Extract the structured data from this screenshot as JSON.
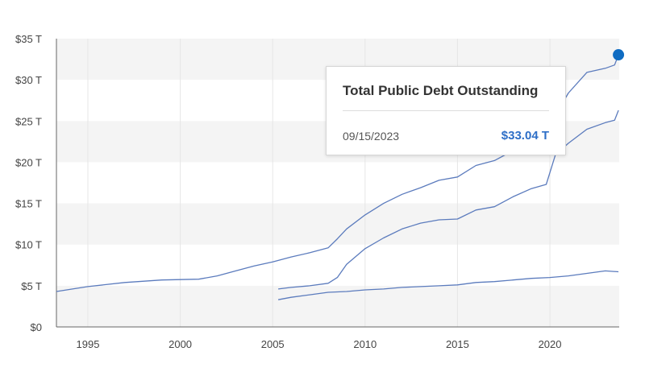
{
  "chart_data": {
    "type": "line",
    "title": "",
    "xlabel": "",
    "ylabel": "",
    "xlim": [
      1993.3,
      2023.75
    ],
    "ylim": [
      0,
      35
    ],
    "x_ticks": [
      "1995",
      "2000",
      "2005",
      "2010",
      "2015",
      "2020"
    ],
    "y_ticks": [
      "$0",
      "$5 T",
      "$10 T",
      "$15 T",
      "$20 T",
      "$25 T",
      "$30 T",
      "$35 T"
    ],
    "grid": "banded horizontal, vertical gridlines",
    "series": [
      {
        "x": [
          1993.3,
          1995,
          1997,
          1999,
          2001,
          2002,
          2003,
          2004,
          2005,
          2006,
          2007,
          2008,
          2008.5,
          2009,
          2010,
          2011,
          2012,
          2013,
          2014,
          2015,
          2016,
          2017,
          2018,
          2019,
          2019.8,
          2020.3,
          2021,
          2022,
          2023,
          2023.5,
          2023.71
        ],
        "values": [
          4.3,
          4.9,
          5.4,
          5.7,
          5.8,
          6.2,
          6.8,
          7.4,
          7.9,
          8.5,
          9.0,
          9.6,
          10.7,
          11.9,
          13.6,
          15.0,
          16.1,
          16.9,
          17.8,
          18.2,
          19.6,
          20.2,
          21.4,
          22.7,
          23.3,
          25.7,
          28.4,
          30.9,
          31.4,
          31.8,
          33.04
        ]
      },
      {
        "x": [
          2005.3,
          2006,
          2007,
          2008,
          2008.5,
          2009,
          2010,
          2011,
          2012,
          2013,
          2014,
          2015,
          2016,
          2017,
          2018,
          2019,
          2019.8,
          2020.3,
          2021,
          2022,
          2023,
          2023.5,
          2023.71
        ],
        "values": [
          4.6,
          4.8,
          5.0,
          5.3,
          6.0,
          7.6,
          9.5,
          10.8,
          11.9,
          12.6,
          13.0,
          13.1,
          14.2,
          14.6,
          15.8,
          16.8,
          17.3,
          20.9,
          22.3,
          24.0,
          24.8,
          25.1,
          26.3
        ]
      },
      {
        "x": [
          2005.3,
          2006,
          2007,
          2008,
          2009,
          2010,
          2011,
          2012,
          2013,
          2014,
          2015,
          2016,
          2017,
          2018,
          2019,
          2020,
          2021,
          2022,
          2023,
          2023.71
        ],
        "values": [
          3.3,
          3.6,
          3.9,
          4.2,
          4.3,
          4.5,
          4.6,
          4.8,
          4.9,
          5.0,
          5.1,
          5.4,
          5.5,
          5.7,
          5.9,
          6.0,
          6.2,
          6.5,
          6.8,
          6.7
        ]
      }
    ],
    "highlight": {
      "x": 2023.71,
      "value": 33.04
    },
    "tooltip": {
      "title": "Total Public Debt Outstanding",
      "date": "09/15/2023",
      "value": "$33.04 T"
    },
    "colors": {
      "line": "#5b7bbd",
      "marker": "#0f6cc2",
      "band": "#f4f4f4",
      "value_text": "#2e6fc7"
    }
  }
}
